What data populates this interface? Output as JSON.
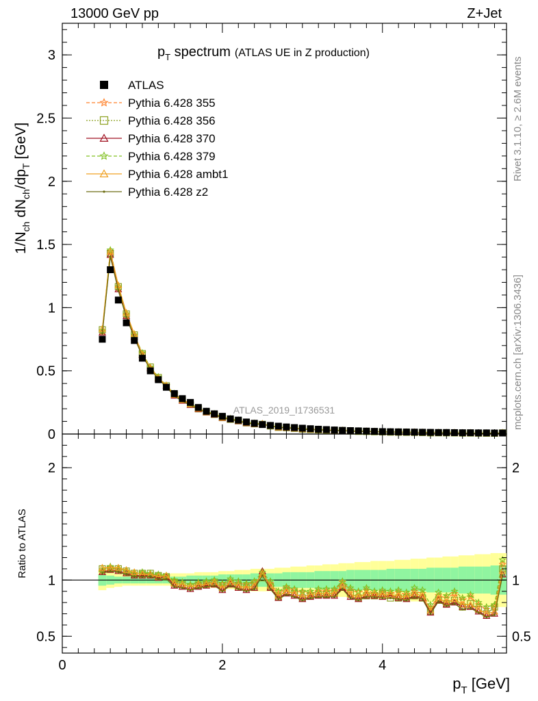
{
  "header": {
    "left": "13000 GeV pp",
    "right": "Z+Jet",
    "title_main": "p",
    "title_sub": "T",
    "title_rest": " spectrum",
    "title_note": "(ATLAS UE in Z production)"
  },
  "side_text": {
    "rivet": "Rivet 3.1.10, ≥ 2.6M events",
    "mcplots": "mcplots.cern.ch [arXiv:1306.3436]"
  },
  "watermark": "ATLAS_2019_I1736531",
  "colors": {
    "data": "#000000",
    "p355": "#ff7f27",
    "p356": "#8ca020",
    "p370": "#a01020",
    "p379": "#80c020",
    "ambt1": "#f0a020",
    "z2": "#6b6b10",
    "band_inner": "#90f5a0",
    "band_outer": "#ffff99"
  },
  "chart_data": {
    "type": "line",
    "top_panel": {
      "ylabel": "1/N_ch dN_ch/dp_T [GeV]",
      "ylim": [
        0,
        3.25
      ],
      "yticks": [
        "0",
        "0.5",
        "1",
        "1.5",
        "2",
        "2.5",
        "3"
      ]
    },
    "ratio_panel": {
      "ylabel": "Ratio to ATLAS",
      "ylim": [
        0.35,
        2.3
      ],
      "yticks": [
        "0.5",
        "1",
        "2"
      ]
    },
    "xlabel": "p_T [GeV]",
    "xlim": [
      0,
      5.55
    ],
    "xticks": [
      "0",
      "2",
      "4"
    ],
    "x": [
      0.5,
      0.6,
      0.7,
      0.8,
      0.9,
      1.0,
      1.1,
      1.2,
      1.3,
      1.4,
      1.5,
      1.6,
      1.7,
      1.8,
      1.9,
      2.0,
      2.1,
      2.2,
      2.3,
      2.4,
      2.5,
      2.6,
      2.7,
      2.8,
      2.9,
      3.0,
      3.1,
      3.2,
      3.3,
      3.4,
      3.5,
      3.6,
      3.7,
      3.8,
      3.9,
      4.0,
      4.1,
      4.2,
      4.3,
      4.4,
      4.5,
      4.6,
      4.7,
      4.8,
      4.9,
      5.0,
      5.1,
      5.2,
      5.3,
      5.4,
      5.5
    ],
    "data": [
      0.75,
      1.3,
      1.06,
      0.88,
      0.74,
      0.6,
      0.5,
      0.43,
      0.37,
      0.32,
      0.28,
      0.25,
      0.21,
      0.18,
      0.16,
      0.14,
      0.12,
      0.11,
      0.095,
      0.085,
      0.075,
      0.068,
      0.062,
      0.056,
      0.051,
      0.046,
      0.042,
      0.038,
      0.035,
      0.032,
      0.029,
      0.027,
      0.025,
      0.023,
      0.021,
      0.019,
      0.018,
      0.017,
      0.016,
      0.015,
      0.014,
      0.013,
      0.012,
      0.012,
      0.011,
      0.01,
      0.01,
      0.009,
      0.009,
      0.008,
      0.008
    ],
    "band_inner": [
      0.05,
      0.04,
      0.03,
      0.03,
      0.03,
      0.03,
      0.03,
      0.03,
      0.03,
      0.03,
      0.03,
      0.04,
      0.04,
      0.04,
      0.04,
      0.05,
      0.05,
      0.05,
      0.05,
      0.06,
      0.06,
      0.06,
      0.06,
      0.07,
      0.07,
      0.07,
      0.07,
      0.08,
      0.08,
      0.08,
      0.08,
      0.09,
      0.09,
      0.09,
      0.09,
      0.09,
      0.1,
      0.1,
      0.1,
      0.1,
      0.1,
      0.11,
      0.11,
      0.11,
      0.11,
      0.12,
      0.12,
      0.12,
      0.12,
      0.13,
      0.13
    ],
    "band_outer": [
      0.09,
      0.07,
      0.06,
      0.05,
      0.05,
      0.05,
      0.05,
      0.05,
      0.05,
      0.06,
      0.06,
      0.06,
      0.07,
      0.07,
      0.07,
      0.08,
      0.08,
      0.09,
      0.09,
      0.1,
      0.1,
      0.1,
      0.11,
      0.11,
      0.12,
      0.12,
      0.13,
      0.13,
      0.14,
      0.14,
      0.15,
      0.15,
      0.16,
      0.16,
      0.17,
      0.17,
      0.17,
      0.18,
      0.18,
      0.19,
      0.19,
      0.2,
      0.2,
      0.21,
      0.21,
      0.22,
      0.22,
      0.23,
      0.23,
      0.24,
      0.24
    ],
    "series": [
      {
        "name": "Pythia 6.428 355",
        "color_key": "p355",
        "marker": "star",
        "dash": "5,3",
        "ratio": [
          1.08,
          1.11,
          1.09,
          1.07,
          1.05,
          1.06,
          1.05,
          1.04,
          1.03,
          0.99,
          0.98,
          0.96,
          0.97,
          0.97,
          0.99,
          0.96,
          0.99,
          0.97,
          0.96,
          0.98,
          1.05,
          0.97,
          0.88,
          0.93,
          0.91,
          0.89,
          0.88,
          0.9,
          0.9,
          0.91,
          0.98,
          0.91,
          0.89,
          0.91,
          0.88,
          0.89,
          0.88,
          0.89,
          0.87,
          0.9,
          0.88,
          0.75,
          0.86,
          0.84,
          0.88,
          0.82,
          0.85,
          0.78,
          0.74,
          0.76,
          1.14
        ]
      },
      {
        "name": "Pythia 6.428 356",
        "color_key": "p356",
        "marker": "square",
        "dash": "2,2",
        "ratio": [
          1.1,
          1.1,
          1.1,
          1.08,
          1.06,
          1.06,
          1.06,
          1.04,
          1.03,
          0.98,
          0.96,
          0.94,
          0.95,
          0.97,
          0.97,
          0.93,
          0.97,
          0.95,
          0.93,
          0.95,
          1.02,
          0.94,
          0.85,
          0.9,
          0.88,
          0.84,
          0.86,
          0.87,
          0.87,
          0.88,
          0.94,
          0.88,
          0.84,
          0.86,
          0.86,
          0.88,
          0.84,
          0.84,
          0.84,
          0.86,
          0.84,
          0.72,
          0.82,
          0.79,
          0.82,
          0.76,
          0.79,
          0.74,
          0.7,
          0.76,
          1.1
        ]
      },
      {
        "name": "Pythia 6.428 370",
        "color_key": "p370",
        "marker": "triangle",
        "dash": "",
        "ratio": [
          1.07,
          1.09,
          1.08,
          1.06,
          1.04,
          1.04,
          1.04,
          1.02,
          1.03,
          0.95,
          0.94,
          0.92,
          0.94,
          0.95,
          0.96,
          0.91,
          0.96,
          0.93,
          0.91,
          0.93,
          1.08,
          0.93,
          0.84,
          0.88,
          0.86,
          0.83,
          0.85,
          0.86,
          0.86,
          0.86,
          0.93,
          0.85,
          0.83,
          0.86,
          0.86,
          0.85,
          0.86,
          0.84,
          0.83,
          0.86,
          0.84,
          0.71,
          0.82,
          0.78,
          0.8,
          0.76,
          0.76,
          0.72,
          0.68,
          0.7,
          1.05
        ]
      },
      {
        "name": "Pythia 6.428 379",
        "color_key": "p379",
        "marker": "star",
        "dash": "5,3",
        "ratio": [
          1.09,
          1.12,
          1.1,
          1.08,
          1.06,
          1.07,
          1.06,
          1.05,
          1.04,
          1.0,
          0.98,
          0.96,
          0.98,
          0.99,
          1.0,
          0.97,
          1.01,
          0.99,
          0.97,
          0.99,
          1.07,
          0.99,
          0.9,
          0.94,
          0.92,
          0.9,
          0.9,
          0.92,
          0.92,
          0.92,
          0.99,
          0.93,
          0.9,
          0.93,
          0.9,
          0.91,
          0.9,
          0.91,
          0.89,
          0.93,
          0.91,
          0.78,
          0.89,
          0.86,
          0.9,
          0.84,
          0.87,
          0.8,
          0.76,
          0.78,
          1.18
        ]
      },
      {
        "name": "Pythia 6.428 ambt1",
        "color_key": "ambt1",
        "marker": "triangle",
        "dash": "",
        "ratio": [
          1.11,
          1.11,
          1.11,
          1.09,
          1.07,
          1.05,
          1.05,
          1.03,
          1.04,
          0.97,
          0.96,
          0.94,
          0.96,
          0.96,
          0.98,
          0.93,
          0.98,
          0.95,
          0.93,
          0.95,
          1.06,
          0.95,
          0.86,
          0.9,
          0.88,
          0.85,
          0.87,
          0.88,
          0.88,
          0.88,
          0.95,
          0.87,
          0.85,
          0.88,
          0.88,
          0.87,
          0.87,
          0.86,
          0.85,
          0.88,
          0.86,
          0.73,
          0.84,
          0.8,
          0.83,
          0.78,
          0.78,
          0.74,
          0.7,
          0.72,
          1.08
        ]
      },
      {
        "name": "Pythia 6.428 z2",
        "color_key": "z2",
        "marker": "dot",
        "dash": "",
        "ratio": [
          1.06,
          1.08,
          1.07,
          1.05,
          1.03,
          1.03,
          1.03,
          1.01,
          1.01,
          0.94,
          0.93,
          0.91,
          0.93,
          0.94,
          0.95,
          0.9,
          0.95,
          0.92,
          0.9,
          0.92,
          1.04,
          0.92,
          0.83,
          0.87,
          0.85,
          0.82,
          0.84,
          0.85,
          0.85,
          0.85,
          0.92,
          0.84,
          0.82,
          0.85,
          0.85,
          0.84,
          0.84,
          0.83,
          0.82,
          0.85,
          0.83,
          0.7,
          0.81,
          0.77,
          0.79,
          0.74,
          0.75,
          0.71,
          0.67,
          0.69,
          1.04
        ]
      }
    ],
    "legend": {
      "placement": "top-left",
      "data_label": "ATLAS"
    }
  }
}
